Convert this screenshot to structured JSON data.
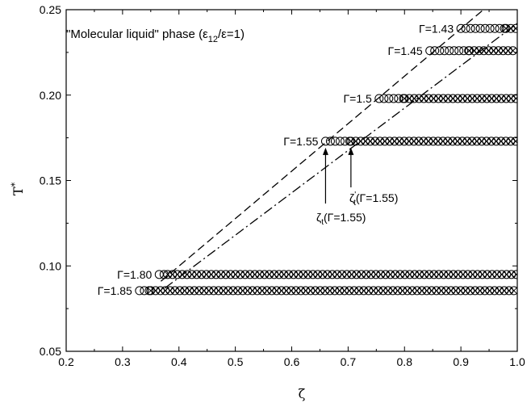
{
  "chart_data": {
    "type": "scatter",
    "title": "\"Molecular liquid\" phase (ε12/ε=1)",
    "title_parts": {
      "main": "\"Molecular liquid\" phase (ε",
      "sub": "12",
      "tail": "/ε=1)"
    },
    "xlabel": "ζ",
    "ylabel": "T",
    "ylabel_sup": "*",
    "xlim": [
      0.2,
      1.0
    ],
    "ylim": [
      0.05,
      0.25
    ],
    "xticks": [
      "0.2",
      "0.3",
      "0.4",
      "0.5",
      "0.6",
      "0.7",
      "0.8",
      "0.9",
      "1.0"
    ],
    "yticks": [
      "0.05",
      "0.10",
      "0.15",
      "0.20",
      "0.25"
    ],
    "grid": false,
    "series": [
      {
        "name": "Γ=1.43",
        "T": 0.239,
        "circles_x": [
          0.9,
          0.98
        ],
        "crossed_x": [
          0.98,
          1.0
        ]
      },
      {
        "name": "Γ=1.45",
        "T": 0.226,
        "circles_x": [
          0.845,
          0.915
        ],
        "crossed_x": [
          0.915,
          1.0
        ]
      },
      {
        "name": "Γ=1.5",
        "T": 0.198,
        "circles_x": [
          0.755,
          0.8
        ],
        "crossed_x": [
          0.8,
          1.0
        ]
      },
      {
        "name": "Γ=1.55",
        "T": 0.173,
        "circles_x": [
          0.66,
          0.705
        ],
        "crossed_x": [
          0.705,
          1.0
        ]
      },
      {
        "name": "Γ=1.80",
        "T": 0.095,
        "circles_x": [
          0.365,
          0.38
        ],
        "crossed_x": [
          0.38,
          1.0
        ]
      },
      {
        "name": "Γ=1.85",
        "T": 0.0855,
        "circles_x": [
          0.33,
          0.35
        ],
        "crossed_x": [
          0.35,
          1.0
        ]
      }
    ],
    "lines": [
      {
        "style": "dashed",
        "from": [
          0.368,
          0.091
        ],
        "to": [
          0.94,
          0.25
        ]
      },
      {
        "style": "dash-dot",
        "from": [
          0.375,
          0.087
        ],
        "to": [
          1.0,
          0.242
        ]
      }
    ],
    "annotations": [
      {
        "text": "ζt(Γ=1.55)",
        "main": "ζ",
        "sub": "t",
        "tail": "(Γ=1.55)",
        "arrow_x": 0.66
      },
      {
        "text": "ζ't(Γ=1.55)",
        "main": "ζ",
        "sup": "'",
        "sub": "t",
        "tail": "(Γ=1.55)",
        "arrow_x": 0.705
      }
    ]
  }
}
